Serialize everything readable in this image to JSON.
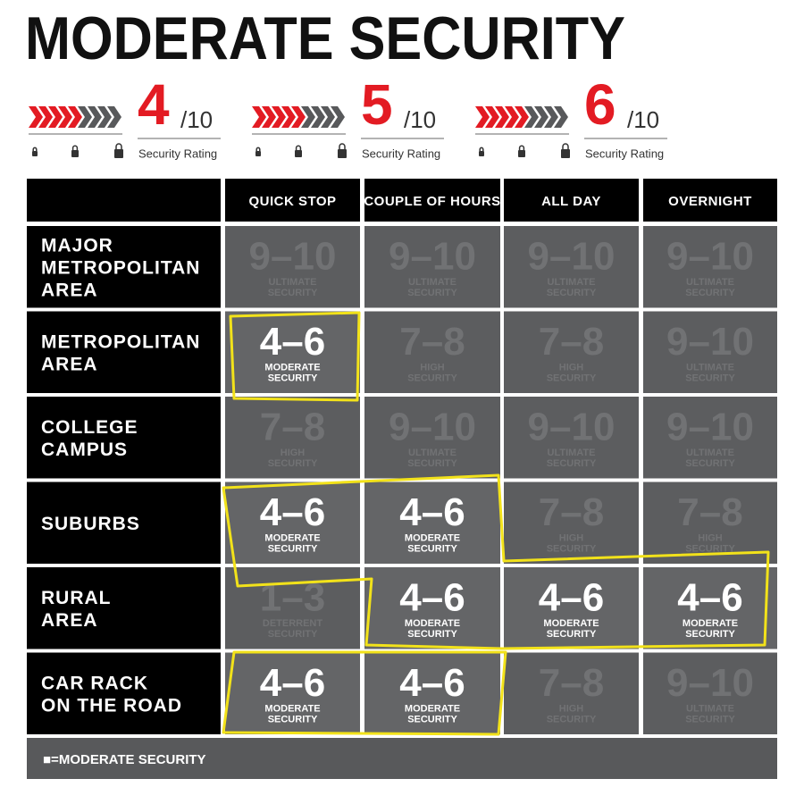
{
  "title": "MODERATE SECURITY",
  "ratings": [
    {
      "score": 4,
      "scale": "/10",
      "caption": "Security Rating"
    },
    {
      "score": 5,
      "scale": "/10",
      "caption": "Security Rating"
    },
    {
      "score": 6,
      "scale": "/10",
      "caption": "Security Rating"
    }
  ],
  "table": {
    "columns": [
      "QUICK STOP",
      "COUPLE OF HOURS",
      "ALL DAY",
      "OVERNIGHT"
    ],
    "rows": [
      {
        "label": [
          "MAJOR",
          "METROPOLITAN",
          "AREA"
        ],
        "cells": [
          {
            "range": "9–10",
            "lines": [
              "ULTIMATE",
              "SECURITY"
            ],
            "highlight": false
          },
          {
            "range": "9–10",
            "lines": [
              "ULTIMATE",
              "SECURITY"
            ],
            "highlight": false
          },
          {
            "range": "9–10",
            "lines": [
              "ULTIMATE",
              "SECURITY"
            ],
            "highlight": false
          },
          {
            "range": "9–10",
            "lines": [
              "ULTIMATE",
              "SECURITY"
            ],
            "highlight": false
          }
        ]
      },
      {
        "label": [
          "METROPOLITAN",
          "AREA"
        ],
        "cells": [
          {
            "range": "4–6",
            "lines": [
              "MODERATE",
              "SECURITY"
            ],
            "highlight": true
          },
          {
            "range": "7–8",
            "lines": [
              "HIGH",
              "SECURITY"
            ],
            "highlight": false
          },
          {
            "range": "7–8",
            "lines": [
              "HIGH",
              "SECURITY"
            ],
            "highlight": false
          },
          {
            "range": "9–10",
            "lines": [
              "ULTIMATE",
              "SECURITY"
            ],
            "highlight": false
          }
        ]
      },
      {
        "label": [
          "COLLEGE",
          "CAMPUS"
        ],
        "cells": [
          {
            "range": "7–8",
            "lines": [
              "HIGH",
              "SECURITY"
            ],
            "highlight": false
          },
          {
            "range": "9–10",
            "lines": [
              "ULTIMATE",
              "SECURITY"
            ],
            "highlight": false
          },
          {
            "range": "9–10",
            "lines": [
              "ULTIMATE",
              "SECURITY"
            ],
            "highlight": false
          },
          {
            "range": "9–10",
            "lines": [
              "ULTIMATE",
              "SECURITY"
            ],
            "highlight": false
          }
        ]
      },
      {
        "label": [
          "SUBURBS"
        ],
        "cells": [
          {
            "range": "4–6",
            "lines": [
              "MODERATE",
              "SECURITY"
            ],
            "highlight": true
          },
          {
            "range": "4–6",
            "lines": [
              "MODERATE",
              "SECURITY"
            ],
            "highlight": true
          },
          {
            "range": "7–8",
            "lines": [
              "HIGH",
              "SECURITY"
            ],
            "highlight": false
          },
          {
            "range": "7–8",
            "lines": [
              "HIGH",
              "SECURITY"
            ],
            "highlight": false
          }
        ]
      },
      {
        "label": [
          "RURAL",
          "AREA"
        ],
        "cells": [
          {
            "range": "1–3",
            "lines": [
              "DETERRENT",
              "SECURITY"
            ],
            "highlight": false
          },
          {
            "range": "4–6",
            "lines": [
              "MODERATE",
              "SECURITY"
            ],
            "highlight": true
          },
          {
            "range": "4–6",
            "lines": [
              "MODERATE",
              "SECURITY"
            ],
            "highlight": true
          },
          {
            "range": "4–6",
            "lines": [
              "MODERATE",
              "SECURITY"
            ],
            "highlight": true
          }
        ]
      },
      {
        "label": [
          "CAR RACK",
          "ON THE ROAD"
        ],
        "cells": [
          {
            "range": "4–6",
            "lines": [
              "MODERATE",
              "SECURITY"
            ],
            "highlight": true
          },
          {
            "range": "4–6",
            "lines": [
              "MODERATE",
              "SECURITY"
            ],
            "highlight": true
          },
          {
            "range": "7–8",
            "lines": [
              "HIGH",
              "SECURITY"
            ],
            "highlight": false
          },
          {
            "range": "9–10",
            "lines": [
              "ULTIMATE",
              "SECURITY"
            ],
            "highlight": false
          }
        ]
      }
    ],
    "footer": "■=MODERATE SECURITY"
  }
}
